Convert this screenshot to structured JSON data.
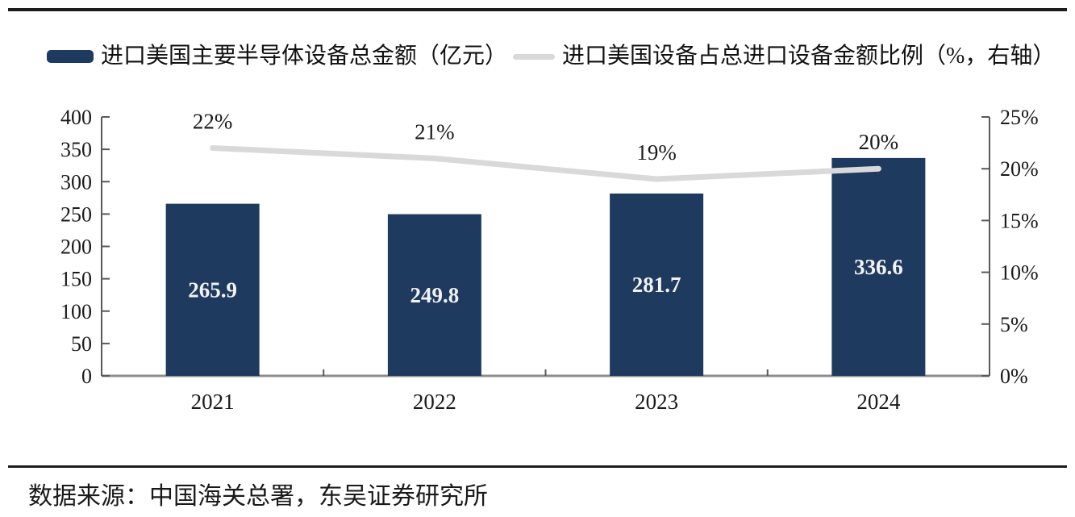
{
  "legend": {
    "items": [
      {
        "label": "进口美国主要半导体设备总金额（亿元）",
        "swatch": "bar",
        "color": "#1f3a5f"
      },
      {
        "label": "进口美国设备占总进口设备金额比例（%，右轴）",
        "swatch": "line",
        "color": "#d9d9d9"
      }
    ]
  },
  "chart_data": {
    "type": "combo-bar-line",
    "categories": [
      "2021",
      "2022",
      "2023",
      "2024"
    ],
    "series": [
      {
        "name": "进口美国主要半导体设备总金额（亿元）",
        "chart": "bar",
        "axis": "left",
        "values": [
          265.9,
          249.8,
          281.7,
          336.6
        ],
        "value_labels": [
          "265.9",
          "249.8",
          "281.7",
          "336.6"
        ]
      },
      {
        "name": "进口美国设备占总进口设备金额比例（%，右轴）",
        "chart": "line",
        "axis": "right",
        "values": [
          22,
          21,
          19,
          20
        ],
        "value_labels": [
          "22%",
          "21%",
          "19%",
          "20%"
        ]
      }
    ],
    "left_axis": {
      "min": 0,
      "max": 400,
      "step": 50
    },
    "right_axis": {
      "min": 0,
      "max": 25,
      "step": 5,
      "suffix": "%"
    },
    "grid": false,
    "legend_position": "top"
  },
  "colors": {
    "bar": "#1f3a5f",
    "line": "#d9d9d9",
    "bar_value_label": "#f2f2f2",
    "axis_line": "#8c8c8c",
    "axis_tick": "#595959",
    "text": "#1a1a1a",
    "rule": "#1c1c1c"
  },
  "footer": {
    "source": "数据来源：中国海关总署，东吴证券研究所"
  }
}
